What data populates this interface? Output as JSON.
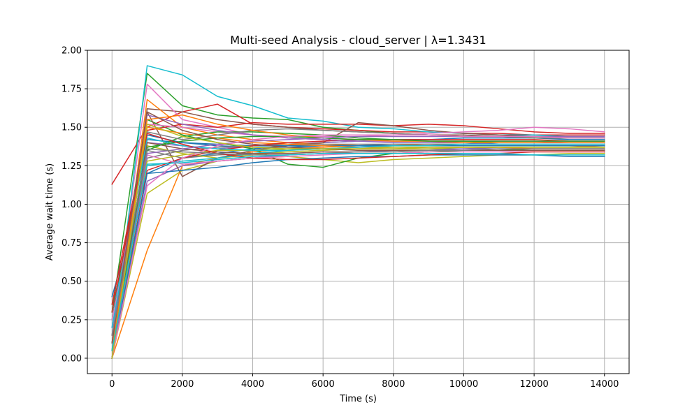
{
  "chart_data": {
    "type": "line",
    "title": "Multi-seed Analysis - cloud_server | λ=1.3431",
    "xlabel": "Time (s)",
    "ylabel": "Average wait time (s)",
    "xlim": [
      -700,
      14700
    ],
    "ylim": [
      -0.1,
      2.0
    ],
    "xticks": [
      0,
      2000,
      4000,
      6000,
      8000,
      10000,
      12000,
      14000
    ],
    "yticks": [
      0.0,
      0.25,
      0.5,
      0.75,
      1.0,
      1.25,
      1.5,
      1.75,
      2.0
    ],
    "xtick_labels": [
      "0",
      "2000",
      "4000",
      "6000",
      "8000",
      "10000",
      "12000",
      "14000"
    ],
    "ytick_labels": [
      "0.00",
      "0.25",
      "0.50",
      "0.75",
      "1.00",
      "1.25",
      "1.50",
      "1.75",
      "2.00"
    ],
    "grid": true,
    "legend": "none",
    "x": [
      0,
      1000,
      2000,
      3000,
      4000,
      5000,
      6000,
      7000,
      8000,
      9000,
      10000,
      11000,
      12000,
      13000,
      14000
    ],
    "colors": [
      "#1f77b4",
      "#ff7f0e",
      "#2ca02c",
      "#d62728",
      "#9467bd",
      "#8c564b",
      "#e377c2",
      "#7f7f7f",
      "#bcbd22",
      "#17becf"
    ],
    "series": [
      {
        "values": [
          0.4,
          1.2,
          1.3,
          1.33,
          1.36,
          1.38,
          1.4,
          1.41,
          1.42,
          1.42,
          1.43,
          1.43,
          1.43,
          1.42,
          1.42
        ]
      },
      {
        "values": [
          0.0,
          0.7,
          1.25,
          1.3,
          1.34,
          1.36,
          1.37,
          1.38,
          1.38,
          1.39,
          1.39,
          1.39,
          1.39,
          1.39,
          1.39
        ]
      },
      {
        "values": [
          0.3,
          1.85,
          1.64,
          1.58,
          1.56,
          1.55,
          1.5,
          1.48,
          1.46,
          1.45,
          1.44,
          1.44,
          1.43,
          1.43,
          1.43
        ]
      },
      {
        "values": [
          1.13,
          1.5,
          1.6,
          1.65,
          1.52,
          1.5,
          1.49,
          1.48,
          1.47,
          1.47,
          1.46,
          1.46,
          1.45,
          1.45,
          1.45
        ]
      },
      {
        "values": [
          0.05,
          1.4,
          1.38,
          1.36,
          1.38,
          1.39,
          1.4,
          1.41,
          1.41,
          1.41,
          1.41,
          1.41,
          1.41,
          1.4,
          1.4
        ]
      },
      {
        "values": [
          0.0,
          1.62,
          1.6,
          1.55,
          1.52,
          1.5,
          1.48,
          1.47,
          1.46,
          1.45,
          1.45,
          1.44,
          1.44,
          1.44,
          1.44
        ]
      },
      {
        "values": [
          0.1,
          1.78,
          1.55,
          1.5,
          1.45,
          1.43,
          1.42,
          1.41,
          1.41,
          1.41,
          1.41,
          1.41,
          1.41,
          1.41,
          1.41
        ]
      },
      {
        "values": [
          0.15,
          1.35,
          1.3,
          1.32,
          1.33,
          1.34,
          1.35,
          1.36,
          1.36,
          1.36,
          1.36,
          1.37,
          1.37,
          1.37,
          1.37
        ]
      },
      {
        "values": [
          0.0,
          1.07,
          1.22,
          1.28,
          1.3,
          1.31,
          1.29,
          1.27,
          1.29,
          1.3,
          1.31,
          1.32,
          1.32,
          1.33,
          1.33
        ]
      },
      {
        "values": [
          0.05,
          1.9,
          1.84,
          1.7,
          1.64,
          1.56,
          1.54,
          1.5,
          1.49,
          1.47,
          1.46,
          1.45,
          1.45,
          1.44,
          1.44
        ]
      },
      {
        "values": [
          0.2,
          1.45,
          1.4,
          1.38,
          1.37,
          1.37,
          1.38,
          1.38,
          1.39,
          1.39,
          1.39,
          1.4,
          1.4,
          1.4,
          1.4
        ]
      },
      {
        "values": [
          0.0,
          1.68,
          1.5,
          1.45,
          1.42,
          1.4,
          1.39,
          1.38,
          1.38,
          1.38,
          1.38,
          1.38,
          1.38,
          1.38,
          1.37
        ]
      },
      {
        "values": [
          0.25,
          1.55,
          1.45,
          1.4,
          1.36,
          1.26,
          1.24,
          1.3,
          1.33,
          1.34,
          1.35,
          1.35,
          1.36,
          1.36,
          1.36
        ]
      },
      {
        "values": [
          0.35,
          1.48,
          1.52,
          1.5,
          1.53,
          1.52,
          1.52,
          1.52,
          1.51,
          1.52,
          1.51,
          1.49,
          1.47,
          1.46,
          1.46
        ]
      },
      {
        "values": [
          0.0,
          1.15,
          1.25,
          1.28,
          1.3,
          1.32,
          1.33,
          1.34,
          1.35,
          1.35,
          1.36,
          1.36,
          1.36,
          1.36,
          1.36
        ]
      },
      {
        "values": [
          0.0,
          1.6,
          1.18,
          1.3,
          1.35,
          1.38,
          1.4,
          1.53,
          1.51,
          1.48,
          1.46,
          1.45,
          1.44,
          1.43,
          1.43
        ]
      },
      {
        "values": [
          0.2,
          1.52,
          1.5,
          1.47,
          1.45,
          1.44,
          1.44,
          1.44,
          1.45,
          1.46,
          1.47,
          1.48,
          1.5,
          1.49,
          1.47
        ]
      },
      {
        "values": [
          0.1,
          1.3,
          1.35,
          1.37,
          1.38,
          1.39,
          1.39,
          1.39,
          1.39,
          1.39,
          1.39,
          1.39,
          1.39,
          1.39,
          1.39
        ]
      },
      {
        "values": [
          0.0,
          1.38,
          1.33,
          1.3,
          1.32,
          1.34,
          1.35,
          1.36,
          1.36,
          1.37,
          1.37,
          1.37,
          1.37,
          1.37,
          1.37
        ]
      },
      {
        "values": [
          0.3,
          1.25,
          1.28,
          1.3,
          1.33,
          1.35,
          1.36,
          1.37,
          1.38,
          1.38,
          1.38,
          1.38,
          1.38,
          1.38,
          1.38
        ]
      },
      {
        "values": [
          0.0,
          1.42,
          1.4,
          1.39,
          1.38,
          1.38,
          1.38,
          1.38,
          1.38,
          1.38,
          1.38,
          1.38,
          1.38,
          1.38,
          1.38
        ]
      },
      {
        "values": [
          0.0,
          1.5,
          1.46,
          1.43,
          1.4,
          1.39,
          1.38,
          1.37,
          1.37,
          1.37,
          1.37,
          1.37,
          1.36,
          1.36,
          1.36
        ]
      },
      {
        "values": [
          0.05,
          1.35,
          1.44,
          1.47,
          1.47,
          1.46,
          1.45,
          1.43,
          1.42,
          1.41,
          1.41,
          1.4,
          1.4,
          1.4,
          1.4
        ]
      },
      {
        "values": [
          0.0,
          1.22,
          1.3,
          1.35,
          1.38,
          1.4,
          1.41,
          1.42,
          1.42,
          1.42,
          1.42,
          1.42,
          1.42,
          1.41,
          1.41
        ]
      },
      {
        "values": [
          0.15,
          1.58,
          1.52,
          1.48,
          1.45,
          1.43,
          1.42,
          1.41,
          1.4,
          1.4,
          1.4,
          1.39,
          1.39,
          1.39,
          1.39
        ]
      },
      {
        "values": [
          0.0,
          1.4,
          1.36,
          1.34,
          1.33,
          1.33,
          1.34,
          1.34,
          1.34,
          1.35,
          1.35,
          1.35,
          1.35,
          1.35,
          1.35
        ]
      },
      {
        "values": [
          0.25,
          1.32,
          1.26,
          1.28,
          1.3,
          1.31,
          1.32,
          1.33,
          1.33,
          1.34,
          1.34,
          1.34,
          1.35,
          1.35,
          1.35
        ]
      },
      {
        "values": [
          0.1,
          1.47,
          1.42,
          1.45,
          1.48,
          1.49,
          1.48,
          1.47,
          1.46,
          1.45,
          1.44,
          1.44,
          1.43,
          1.43,
          1.43
        ]
      },
      {
        "values": [
          0.0,
          1.28,
          1.32,
          1.35,
          1.35,
          1.36,
          1.36,
          1.36,
          1.37,
          1.37,
          1.37,
          1.37,
          1.37,
          1.37,
          1.37
        ]
      },
      {
        "values": [
          0.2,
          1.43,
          1.38,
          1.36,
          1.35,
          1.35,
          1.36,
          1.37,
          1.38,
          1.38,
          1.39,
          1.39,
          1.39,
          1.39,
          1.39
        ]
      },
      {
        "values": [
          0.0,
          1.2,
          1.22,
          1.24,
          1.27,
          1.29,
          1.3,
          1.31,
          1.31,
          1.32,
          1.32,
          1.32,
          1.32,
          1.31,
          1.31
        ]
      },
      {
        "values": [
          0.05,
          1.55,
          1.58,
          1.52,
          1.48,
          1.45,
          1.43,
          1.42,
          1.41,
          1.41,
          1.4,
          1.4,
          1.4,
          1.4,
          1.4
        ]
      },
      {
        "values": [
          0.0,
          1.37,
          1.41,
          1.43,
          1.44,
          1.44,
          1.43,
          1.42,
          1.42,
          1.41,
          1.41,
          1.41,
          1.41,
          1.41,
          1.41
        ]
      },
      {
        "values": [
          0.3,
          1.46,
          1.39,
          1.33,
          1.3,
          1.29,
          1.29,
          1.3,
          1.31,
          1.32,
          1.33,
          1.33,
          1.34,
          1.34,
          1.34
        ]
      },
      {
        "values": [
          0.0,
          1.33,
          1.36,
          1.39,
          1.41,
          1.42,
          1.43,
          1.44,
          1.44,
          1.44,
          1.44,
          1.44,
          1.44,
          1.44,
          1.44
        ]
      },
      {
        "values": [
          0.1,
          1.6,
          1.48,
          1.42,
          1.39,
          1.37,
          1.36,
          1.35,
          1.35,
          1.35,
          1.35,
          1.35,
          1.35,
          1.35,
          1.35
        ]
      },
      {
        "values": [
          0.0,
          1.12,
          1.3,
          1.38,
          1.42,
          1.44,
          1.45,
          1.45,
          1.45,
          1.45,
          1.44,
          1.44,
          1.44,
          1.43,
          1.43
        ]
      },
      {
        "values": [
          0.15,
          1.36,
          1.34,
          1.33,
          1.32,
          1.32,
          1.33,
          1.34,
          1.34,
          1.35,
          1.35,
          1.36,
          1.36,
          1.36,
          1.36
        ]
      },
      {
        "values": [
          0.0,
          1.52,
          1.44,
          1.4,
          1.37,
          1.36,
          1.36,
          1.36,
          1.36,
          1.36,
          1.37,
          1.37,
          1.37,
          1.37,
          1.37
        ]
      },
      {
        "values": [
          0.05,
          1.26,
          1.27,
          1.29,
          1.31,
          1.32,
          1.33,
          1.33,
          1.33,
          1.33,
          1.33,
          1.33,
          1.32,
          1.32,
          1.32
        ]
      }
    ]
  }
}
